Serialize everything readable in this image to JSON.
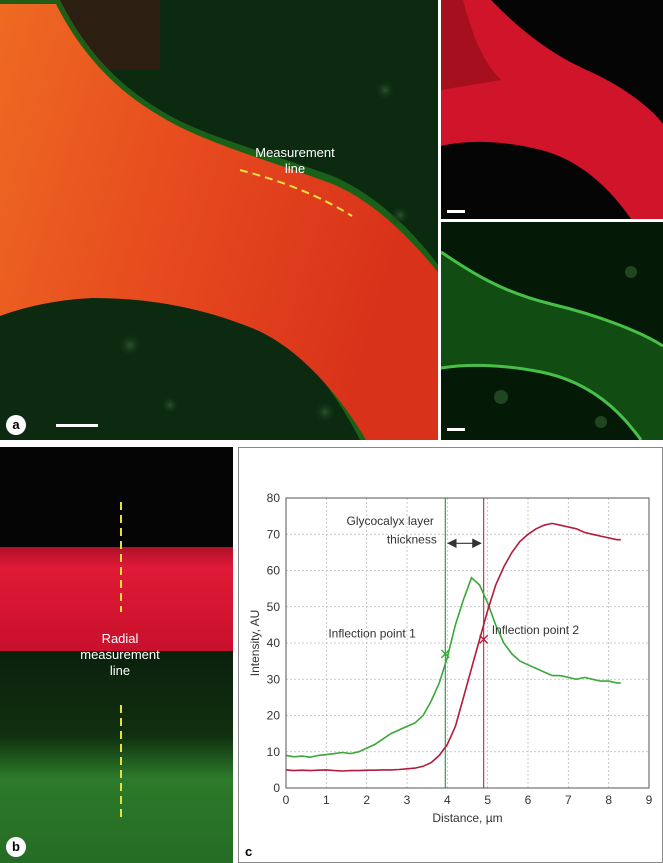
{
  "panels": {
    "a": {
      "letter": "a",
      "measurement_label_line1": "Measurement",
      "measurement_label_line2": "line"
    },
    "b": {
      "letter": "b",
      "radial_label_line1": "Radial",
      "radial_label_line2": "measurement",
      "radial_label_line3": "line"
    },
    "c": {
      "letter": "c"
    }
  },
  "colors": {
    "red_channel": "#c8192a",
    "green_channel": "#3cae3c",
    "measurement_line": "#e8e040"
  },
  "chart_data": {
    "type": "line",
    "xlabel": "Distance, µm",
    "ylabel": "Intensity, AU",
    "xlim": [
      0,
      9
    ],
    "ylim": [
      0,
      80
    ],
    "xticks": [
      0,
      1,
      2,
      3,
      4,
      5,
      6,
      7,
      8,
      9
    ],
    "yticks": [
      0,
      10,
      20,
      30,
      40,
      50,
      60,
      70,
      80
    ],
    "grid": true,
    "series": [
      {
        "color": "#3aa83a",
        "x": [
          0,
          0.2,
          0.4,
          0.6,
          0.8,
          1.0,
          1.2,
          1.4,
          1.6,
          1.8,
          2.0,
          2.2,
          2.4,
          2.6,
          2.8,
          3.0,
          3.2,
          3.4,
          3.6,
          3.8,
          4.0,
          4.2,
          4.4,
          4.6,
          4.8,
          5.0,
          5.2,
          5.4,
          5.6,
          5.8,
          6.0,
          6.2,
          6.4,
          6.6,
          6.8,
          7.0,
          7.2,
          7.4,
          7.6,
          7.8,
          8.0,
          8.2,
          8.3
        ],
        "y": [
          9,
          8.6,
          8.8,
          8.5,
          9,
          9.2,
          9.5,
          9.8,
          9.5,
          10,
          11,
          12,
          13.5,
          15,
          16,
          17,
          18,
          20,
          24,
          29,
          36,
          45,
          52,
          58,
          56,
          51,
          45,
          40,
          37,
          35,
          34,
          33,
          32,
          31,
          31,
          30.5,
          30,
          30.5,
          30,
          29.5,
          29.5,
          29,
          29
        ]
      },
      {
        "color": "#b01c3a",
        "x": [
          0,
          0.2,
          0.4,
          0.6,
          0.8,
          1.0,
          1.2,
          1.4,
          1.6,
          1.8,
          2.0,
          2.2,
          2.4,
          2.6,
          2.8,
          3.0,
          3.2,
          3.4,
          3.6,
          3.8,
          4.0,
          4.2,
          4.4,
          4.6,
          4.8,
          5.0,
          5.2,
          5.4,
          5.6,
          5.8,
          6.0,
          6.2,
          6.4,
          6.6,
          6.8,
          7.0,
          7.2,
          7.4,
          7.6,
          7.8,
          8.0,
          8.2,
          8.3
        ],
        "y": [
          5,
          4.8,
          4.9,
          4.8,
          4.9,
          5,
          4.8,
          4.7,
          4.8,
          4.8,
          4.9,
          4.9,
          5,
          5,
          5.1,
          5.3,
          5.5,
          6,
          7,
          9,
          12,
          17,
          25,
          33,
          41,
          49,
          56,
          61,
          65,
          68,
          70,
          71.5,
          72.5,
          73,
          72.5,
          72,
          71.5,
          70.5,
          70,
          69.5,
          69,
          68.5,
          68.5
        ]
      }
    ],
    "vlines": [
      {
        "x": 3.95,
        "color": "#2e9e4e"
      },
      {
        "x": 4.9,
        "color": "#c83a50"
      }
    ],
    "annotations": {
      "glycocalyx_line1": "Glycocalyx layer",
      "glycocalyx_line2": "thickness",
      "inflection1": "Inflection point 1",
      "inflection2": "Inflection point 2"
    },
    "markers": [
      {
        "x": 3.95,
        "y": 37,
        "color": "#3aa83a"
      },
      {
        "x": 4.9,
        "y": 41,
        "color": "#b01c3a"
      }
    ]
  }
}
